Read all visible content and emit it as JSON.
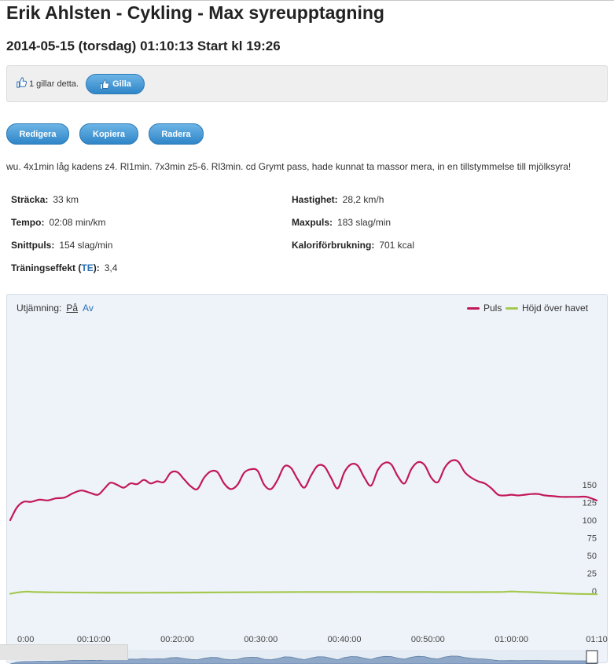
{
  "page": {
    "title": "Erik Ahlsten - Cykling - Max syreupptagning",
    "subtitle": "2014-05-15 (torsdag) 01:10:13 Start kl 19:26"
  },
  "like": {
    "count_text": "1 gillar detta.",
    "button_label": "Gilla"
  },
  "actions": {
    "edit": "Redigera",
    "copy": "Kopiera",
    "delete": "Radera"
  },
  "description": "wu. 4x1min låg kadens z4. Rl1min. 7x3min z5-6. Rl3min. cd Grymt pass, hade kunnat ta massor mera, in en tillstymmelse till mjölksyra!",
  "stats": {
    "distance": {
      "label": "Sträcka:",
      "value": "33 km"
    },
    "speed": {
      "label": "Hastighet:",
      "value": "28,2 km/h"
    },
    "pace": {
      "label": "Tempo:",
      "value": "02:08 min/km"
    },
    "maxpulse": {
      "label": "Maxpuls:",
      "value": "183 slag/min"
    },
    "avgpulse": {
      "label": "Snittpuls:",
      "value": "154 slag/min"
    },
    "calories": {
      "label": "Kaloriförbrukning:",
      "value": "701 kcal"
    },
    "training_effect": {
      "label_prefix": "Träningseffekt (",
      "label_abbr": "TE",
      "label_suffix": "):",
      "value": "3,4"
    }
  },
  "chart_controls": {
    "smoothing_label": "Utjämning:",
    "on": "På",
    "off": "Av"
  },
  "colors": {
    "pulse": "#c2185b",
    "altitude": "#a5c850",
    "button": "#3a8fd0"
  },
  "chart_data": {
    "type": "line",
    "x_tick_labels": [
      "0:00",
      "00:10:00",
      "00:20:00",
      "00:30:00",
      "00:40:00",
      "00:50:00",
      "01:00:00",
      "01:10"
    ],
    "x_range_min": [
      0,
      70.2
    ],
    "y_ticks": [
      0,
      25,
      50,
      75,
      100,
      125,
      150
    ],
    "ylim": [
      -5,
      182
    ],
    "series": [
      {
        "name": "Puls",
        "color": "#c2185b",
        "x": [
          0,
          0.8,
          1.6,
          2.5,
          3.5,
          4.5,
          5.5,
          6.5,
          7.5,
          8.5,
          9.5,
          10.5,
          11.3,
          12,
          12.8,
          13.6,
          14.4,
          15.2,
          16,
          16.8,
          17.6,
          18.4,
          19.2,
          20,
          20.8,
          21.6,
          22.4,
          23.2,
          24,
          24.8,
          25.6,
          26.4,
          27.2,
          28,
          28.8,
          29.6,
          30.4,
          31.2,
          32,
          32.8,
          33.6,
          34.4,
          35.2,
          36,
          36.8,
          37.6,
          38.4,
          39.2,
          40,
          40.8,
          41.6,
          42.4,
          43.2,
          44,
          44.8,
          45.6,
          46.4,
          47.2,
          48,
          48.8,
          49.6,
          50.4,
          51.2,
          52,
          52.8,
          53.6,
          54.4,
          55.2,
          56,
          56.8,
          57.6,
          58.4,
          59.2,
          60,
          60.8,
          61.6,
          62.4,
          63.2,
          64,
          65,
          66,
          67,
          68,
          69,
          70.2
        ],
        "y": [
          100,
          118,
          126,
          126,
          129,
          128,
          131,
          132,
          138,
          142,
          139,
          136,
          145,
          153,
          150,
          146,
          152,
          151,
          157,
          152,
          155,
          154,
          167,
          168,
          158,
          148,
          144,
          160,
          169,
          168,
          152,
          144,
          150,
          167,
          172,
          170,
          150,
          144,
          157,
          176,
          174,
          158,
          146,
          163,
          177,
          176,
          160,
          145,
          168,
          179,
          177,
          160,
          149,
          171,
          181,
          179,
          162,
          152,
          172,
          182,
          178,
          160,
          154,
          174,
          184,
          183,
          168,
          160,
          155,
          152,
          145,
          136,
          135,
          136,
          135,
          136,
          137,
          137,
          135,
          134,
          133,
          133,
          133,
          133,
          128
        ]
      },
      {
        "name": "Höjd över havet",
        "color": "#a5c850",
        "x": [
          0,
          1,
          2,
          3,
          5,
          10,
          15,
          20,
          25,
          30,
          35,
          40,
          45,
          50,
          55,
          58,
          59,
          60,
          61,
          62,
          64,
          66,
          68,
          70.2
        ],
        "y": [
          -4,
          -2,
          -1,
          -1.5,
          -2,
          -2.4,
          -2.5,
          -2.3,
          -2.1,
          -1.8,
          -1.6,
          -1.5,
          -1.5,
          -1.6,
          -1.7,
          -1.6,
          -1.4,
          -0.8,
          -1.2,
          -1.6,
          -2.5,
          -3.5,
          -4.2,
          -4.6
        ]
      }
    ]
  }
}
